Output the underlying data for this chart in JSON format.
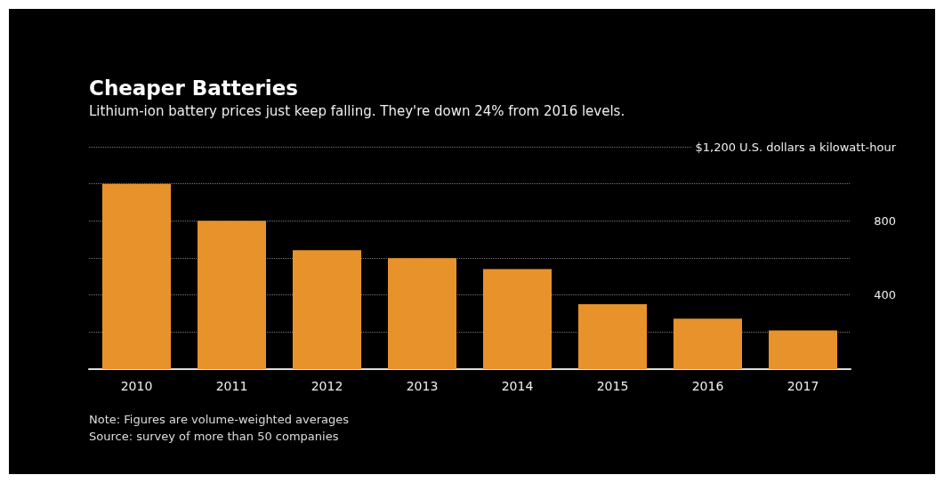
{
  "chart_data": {
    "type": "bar",
    "title": "Cheaper Batteries",
    "subtitle": "Lithium-ion battery prices just keep falling. They're down 24% from 2016 levels.",
    "categories": [
      "2010",
      "2011",
      "2012",
      "2013",
      "2014",
      "2015",
      "2016",
      "2017"
    ],
    "values": [
      1000,
      800,
      642,
      599,
      540,
      350,
      273,
      209
    ],
    "color": "#e8922b",
    "ylim": [
      0,
      1200
    ],
    "yticks": [
      {
        "value": 0,
        "label": null
      },
      {
        "value": 200,
        "label": null
      },
      400,
      {
        "value": 600,
        "label": null
      },
      800,
      {
        "value": 1000,
        "label": null
      },
      {
        "value": 1200,
        "label": "$1,200 U.S. dollars a kilowatt-hour"
      }
    ],
    "grid": "y",
    "annotations": [
      "Note: Figures are volume-weighted averages",
      "Source: survey of more than 50 companies"
    ]
  }
}
